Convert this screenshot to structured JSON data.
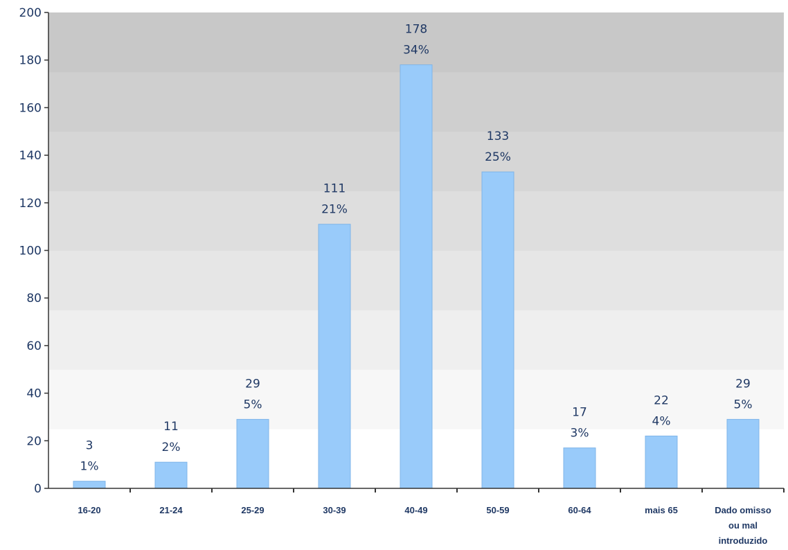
{
  "chart_data": {
    "type": "bar",
    "categories": [
      "16-20",
      "21-24",
      "25-29",
      "30-39",
      "40-49",
      "50-59",
      "60-64",
      "mais 65",
      "Dado omisso ou mal introduzido"
    ],
    "series": [
      {
        "values": [
          3,
          11,
          29,
          111,
          178,
          133,
          17,
          22,
          29
        ],
        "percent_labels": [
          "1%",
          "2%",
          "5%",
          "21%",
          "34%",
          "25%",
          "3%",
          "4%",
          "5%"
        ]
      }
    ],
    "ylim": [
      0,
      200
    ],
    "yticks": [
      "0",
      "20",
      "40",
      "60",
      "80",
      "100",
      "120",
      "140",
      "160",
      "180",
      "200"
    ],
    "legend": "none",
    "grid": "gradient bands",
    "colors": {
      "bar": "#99cbfa",
      "bar_edge": "#7fb4e8",
      "text": "#1f3864",
      "axis": "#333333"
    }
  }
}
